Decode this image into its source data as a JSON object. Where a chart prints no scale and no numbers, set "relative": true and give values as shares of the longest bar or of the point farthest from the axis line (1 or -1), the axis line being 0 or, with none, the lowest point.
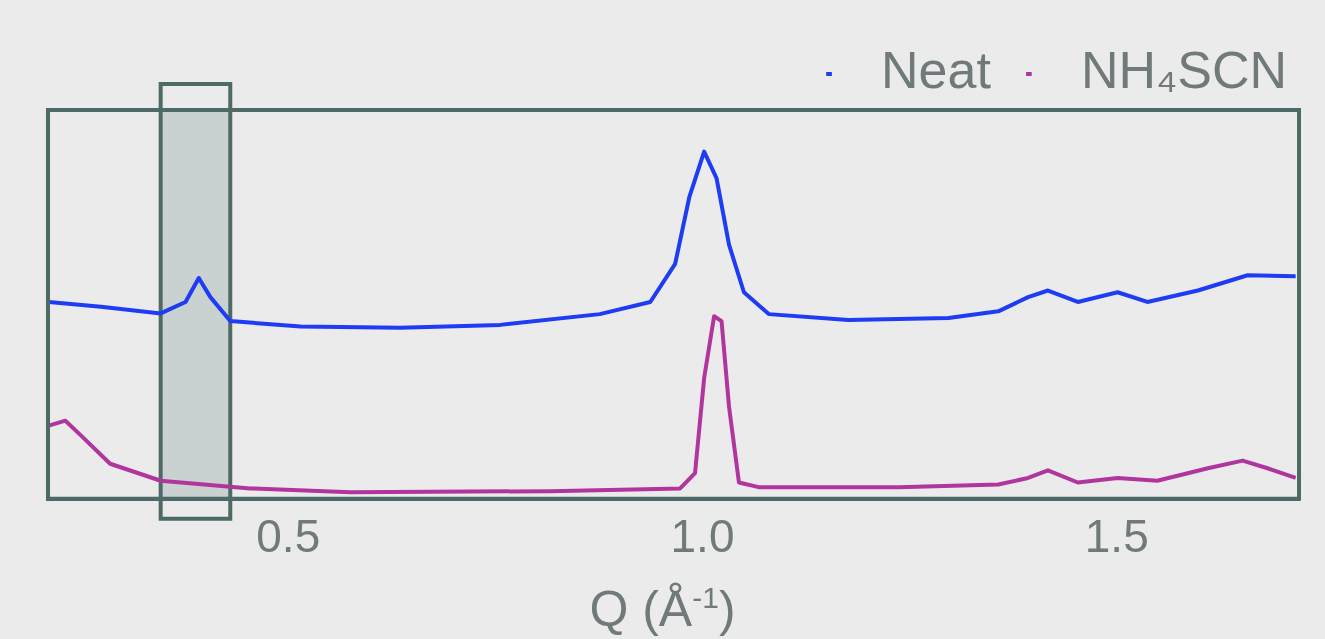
{
  "chart_data": {
    "type": "line",
    "relative": true,
    "xlabel": "Q (Å$^{-1}$)",
    "xlim": [
      0.21,
      1.72
    ],
    "xticks": [
      {
        "value": 0.5,
        "label": "0.5"
      },
      {
        "value": 1.0,
        "label": "1.0"
      },
      {
        "value": 1.5,
        "label": "1.5"
      }
    ],
    "tick_labels": "x",
    "grid": false,
    "legend": "top right",
    "series": [
      {
        "name": "Neat",
        "color": "#1f3cf5",
        "x": [
          0.211,
          0.274,
          0.346,
          0.376,
          0.392,
          0.406,
          0.43,
          0.515,
          0.635,
          0.756,
          0.876,
          0.937,
          0.967,
          0.984,
          1.002,
          1.017,
          1.032,
          1.05,
          1.08,
          1.176,
          1.297,
          1.357,
          1.393,
          1.417,
          1.453,
          1.501,
          1.537,
          1.598,
          1.658,
          1.716
        ],
        "values": [
          0.567,
          0.553,
          0.534,
          0.567,
          0.636,
          0.581,
          0.512,
          0.496,
          0.493,
          0.501,
          0.532,
          0.567,
          0.677,
          0.868,
          1.0,
          0.923,
          0.732,
          0.595,
          0.532,
          0.515,
          0.521,
          0.54,
          0.581,
          0.6,
          0.567,
          0.595,
          0.567,
          0.6,
          0.644,
          0.641
        ]
      },
      {
        "name": "NH₄SCN",
        "color": "#b0359c",
        "x": [
          0.211,
          0.231,
          0.249,
          0.285,
          0.346,
          0.454,
          0.575,
          0.816,
          0.973,
          0.991,
          1.002,
          1.014,
          1.023,
          1.032,
          1.044,
          1.069,
          1.237,
          1.357,
          1.393,
          1.417,
          1.453,
          1.501,
          1.549,
          1.61,
          1.652,
          1.682,
          1.716
        ],
        "values": [
          0.211,
          0.225,
          0.184,
          0.101,
          0.052,
          0.03,
          0.019,
          0.022,
          0.03,
          0.074,
          0.348,
          0.526,
          0.512,
          0.266,
          0.047,
          0.033,
          0.033,
          0.041,
          0.06,
          0.082,
          0.047,
          0.06,
          0.052,
          0.088,
          0.11,
          0.088,
          0.06
        ]
      }
    ],
    "bands": [
      {
        "axis": "x",
        "from": 0.346,
        "to": 0.43,
        "color": "#c9d1d1"
      }
    ]
  }
}
